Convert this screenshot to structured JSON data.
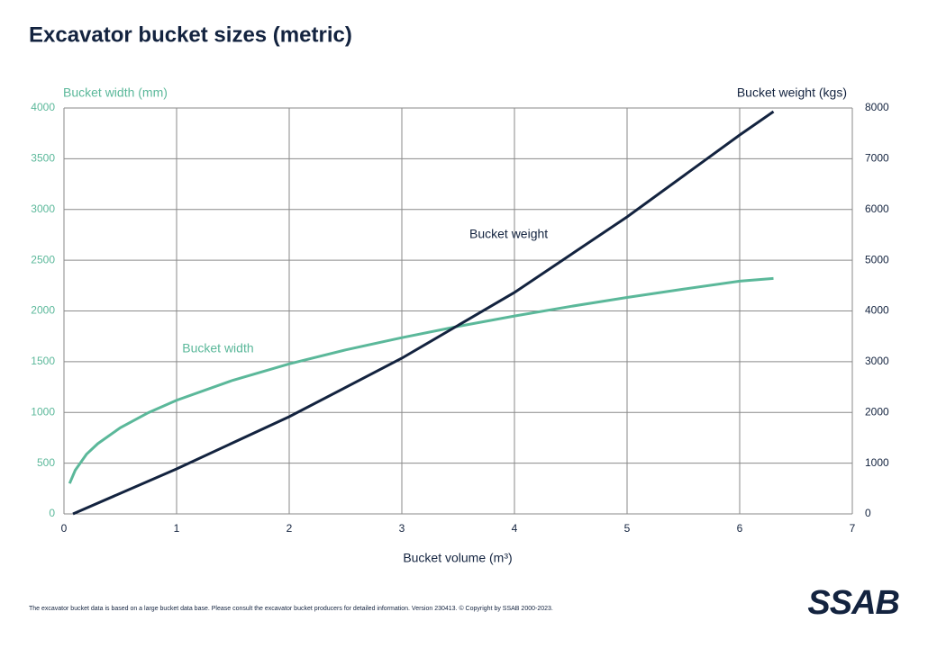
{
  "chart_data": {
    "type": "line",
    "title": "Excavator bucket sizes (metric)",
    "ylabel": "Bucket width (mm)",
    "y2label": "Bucket weight (kgs)",
    "xlabel": "Bucket volume (m³)",
    "annotations": [
      {
        "text": "Bucket weight",
        "x": 3.6,
        "y": 2750,
        "color": "#13233f"
      },
      {
        "text": "Bucket width",
        "x": 1.05,
        "y": 1625,
        "color": "#5bb89a"
      }
    ],
    "xlim": [
      0,
      7
    ],
    "xticks": [
      0,
      1,
      2,
      3,
      4,
      5,
      6,
      7
    ],
    "ylim": [
      0,
      4000
    ],
    "yticks": [
      0,
      500,
      1000,
      1500,
      2000,
      2500,
      3000,
      3500,
      4000
    ],
    "y2lim": [
      0,
      8000
    ],
    "y2ticks": [
      0,
      1000,
      2000,
      3000,
      4000,
      5000,
      6000,
      7000,
      8000
    ],
    "grid": true,
    "series": [
      {
        "name": "Bucket width",
        "color": "#5bb89a",
        "x": [
          0.05,
          0.1,
          0.2,
          0.3,
          0.5,
          0.75,
          1,
          1.5,
          2,
          2.5,
          3,
          3.5,
          4,
          4.5,
          5,
          5.5,
          6,
          6.3
        ],
        "values": [
          300,
          430,
          588,
          692,
          849,
          998,
          1120,
          1317,
          1478,
          1616,
          1737,
          1848,
          1950,
          2045,
          2133,
          2215,
          2294,
          2320
        ]
      },
      {
        "name": "Bucket weight",
        "color": "#13233f",
        "axis": "y2",
        "x": [
          0.08,
          1,
          2,
          3,
          4,
          5,
          6,
          6.3
        ],
        "values": [
          0,
          887,
          1916,
          3069,
          4364,
          5854,
          7468,
          7929
        ]
      }
    ]
  },
  "footnote": "The excavator bucket data is based on a large bucket data base. Please consult the excavator bucket producers for detailed information. Version 230413.  © Copyright by SSAB 2000-2023.",
  "logo": "SSAB"
}
